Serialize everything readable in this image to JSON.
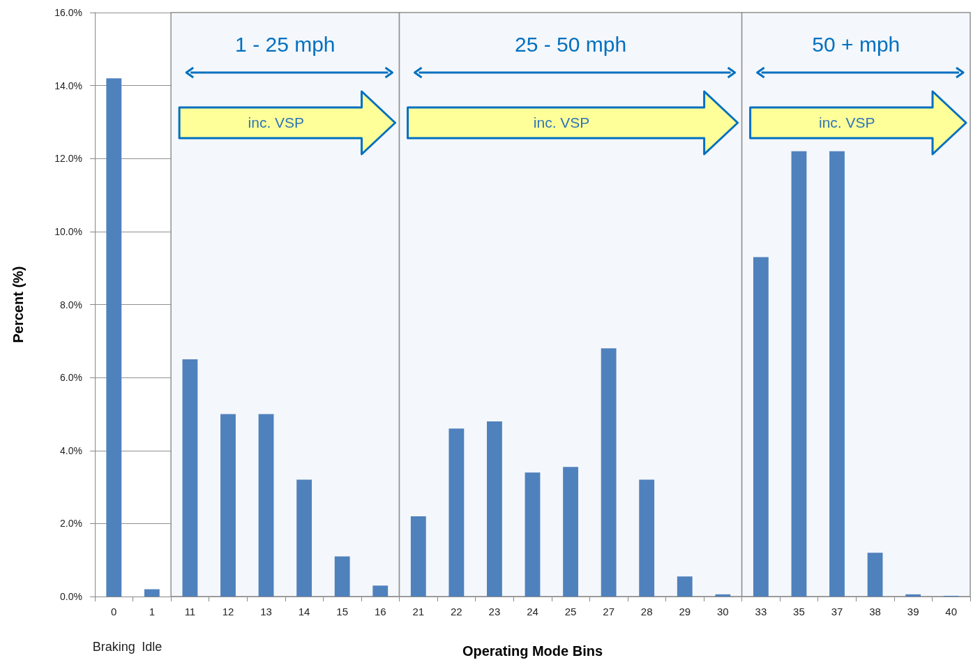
{
  "chart_data": {
    "type": "bar",
    "xlabel": "Operating Mode Bins",
    "ylabel": "Percent (%)",
    "categories": [
      "0",
      "1",
      "11",
      "12",
      "13",
      "14",
      "15",
      "16",
      "21",
      "22",
      "23",
      "24",
      "25",
      "27",
      "28",
      "29",
      "30",
      "33",
      "35",
      "37",
      "38",
      "39",
      "40"
    ],
    "values": [
      14.2,
      0.2,
      6.5,
      5.0,
      5.0,
      3.2,
      1.1,
      0.3,
      2.2,
      4.6,
      4.8,
      3.4,
      3.55,
      6.8,
      3.2,
      0.55,
      0.06,
      9.3,
      12.2,
      12.2,
      1.2,
      0.06,
      0.02
    ],
    "color": "#4f81bd",
    "ylim": [
      0,
      16
    ],
    "yticks": [
      {
        "value": 0,
        "label": "0.0%"
      },
      {
        "value": 2,
        "label": "2.0%"
      },
      {
        "value": 4,
        "label": "4.0%"
      },
      {
        "value": 6,
        "label": "6.0%"
      },
      {
        "value": 8,
        "label": "8.0%"
      },
      {
        "value": 10,
        "label": "10.0%"
      },
      {
        "value": 12,
        "label": "12.0%"
      },
      {
        "value": 14,
        "label": "14.0%"
      },
      {
        "value": 16,
        "label": "16.0%"
      }
    ],
    "grid": "y",
    "bands": [
      {
        "axis": "x",
        "from": "11",
        "to": "16",
        "label": "1 - 25 mph",
        "color": "#f4f7fb"
      },
      {
        "axis": "x",
        "from": "21",
        "to": "30",
        "label": "25 - 50 mph",
        "color": "#f4f7fb"
      },
      {
        "axis": "x",
        "from": "33",
        "to": "40",
        "label": "50 + mph",
        "color": "#f4f7fb"
      }
    ],
    "annotations": [
      "inc. VSP",
      "inc. VSP",
      "inc. VSP",
      "Braking",
      "Idle"
    ]
  }
}
